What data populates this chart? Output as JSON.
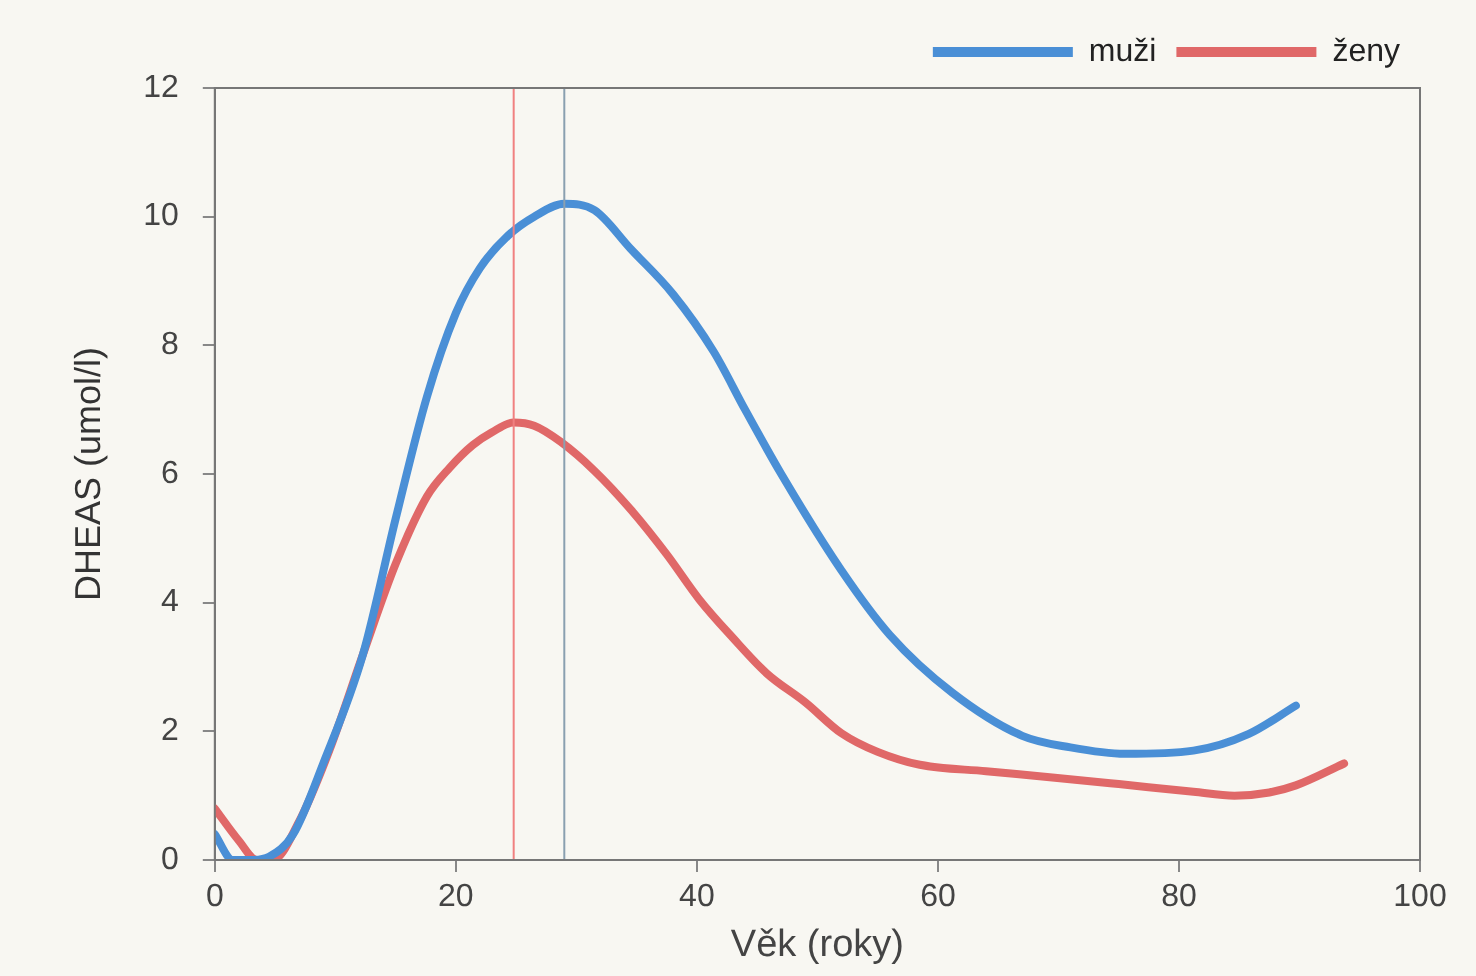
{
  "chart_data": {
    "type": "line",
    "xlabel": "Věk (roky)",
    "ylabel": "DHEAS (umol/l)",
    "xlim": [
      0,
      100
    ],
    "xticks": [
      0,
      20,
      40,
      60,
      80,
      100
    ],
    "ylim": [
      0,
      12
    ],
    "yticks": [
      0,
      2,
      4,
      6,
      8,
      10,
      12
    ],
    "grid": false,
    "legend": "top right",
    "marker": "none",
    "line_style": "solid",
    "ref_lines": [
      {
        "axis": "x",
        "value": 24.8,
        "color": "#f08080"
      },
      {
        "axis": "x",
        "value": 29,
        "color": "#8aa0b0"
      }
    ],
    "series": [
      {
        "name": "muži",
        "color": "#4a8fd6",
        "x": [
          0,
          1.5,
          3,
          4.5,
          6.5,
          9,
          12.3,
          15,
          17.6,
          20,
          22,
          24.3,
          26.5,
          29,
          31.5,
          34.5,
          38,
          41.4,
          44,
          47,
          52,
          56,
          61.2,
          67,
          71,
          75.5,
          81.2,
          85.8,
          89.7
        ],
        "values": [
          0.4,
          0,
          0,
          0.05,
          0.4,
          1.5,
          3.2,
          5.3,
          7.2,
          8.5,
          9.2,
          9.7,
          10,
          10.2,
          10.1,
          9.5,
          8.8,
          7.9,
          7,
          6,
          4.5,
          3.5,
          2.6,
          1.93,
          1.75,
          1.65,
          1.7,
          1.96,
          2.4
        ]
      },
      {
        "name": "ženy",
        "color": "#e06868",
        "x": [
          0,
          2,
          3.5,
          4.8,
          7,
          9.5,
          12.3,
          15,
          17.6,
          19.5,
          21.4,
          23,
          24.8,
          26.5,
          28.7,
          31.5,
          34.5,
          37.5,
          40.2,
          43,
          45.8,
          49,
          52,
          55,
          58.5,
          64,
          69.7,
          75,
          81.2,
          84.6,
          87.5,
          89.7,
          93.7
        ],
        "values": [
          0.8,
          0.3,
          0,
          0,
          0.6,
          1.7,
          3.2,
          4.6,
          5.65,
          6.1,
          6.45,
          6.65,
          6.8,
          6.75,
          6.5,
          6.05,
          5.45,
          4.75,
          4.05,
          3.45,
          2.9,
          2.45,
          1.97,
          1.68,
          1.48,
          1.38,
          1.28,
          1.18,
          1.06,
          1.0,
          1.05,
          1.16,
          1.5
        ]
      }
    ]
  }
}
